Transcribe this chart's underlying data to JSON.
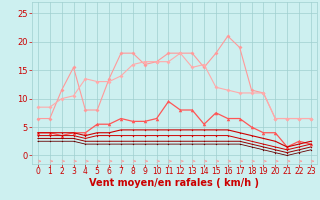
{
  "x": [
    0,
    1,
    2,
    3,
    4,
    5,
    6,
    7,
    8,
    9,
    10,
    11,
    12,
    13,
    14,
    15,
    16,
    17,
    18,
    19,
    20,
    21,
    22,
    23
  ],
  "background_color": "#cdf0f0",
  "grid_color": "#a0d0d0",
  "xlabel": "Vent moyen/en rafales ( km/h )",
  "xlabel_color": "#cc0000",
  "xlabel_fontsize": 7,
  "yticks": [
    0,
    5,
    10,
    15,
    20,
    25
  ],
  "ylim": [
    -1.5,
    27
  ],
  "xlim": [
    -0.5,
    23.5
  ],
  "line1_color": "#ff9999",
  "line1_y": [
    6.5,
    6.5,
    11.5,
    15.5,
    8.0,
    8.0,
    13.5,
    18.0,
    18.0,
    16.0,
    16.5,
    18.0,
    18.0,
    18.0,
    15.5,
    18.0,
    21.0,
    19.0,
    11.5,
    11.0,
    6.5,
    6.5,
    6.5,
    6.5
  ],
  "line2_color": "#ffaaaa",
  "line2_y": [
    8.5,
    8.5,
    10.0,
    10.5,
    13.5,
    13.0,
    13.0,
    14.0,
    16.0,
    16.5,
    16.5,
    16.5,
    18.0,
    15.5,
    16.0,
    12.0,
    11.5,
    11.0,
    11.0,
    11.0,
    6.5,
    6.5,
    6.5,
    6.5
  ],
  "line3_color": "#ff5555",
  "line3_y": [
    4.0,
    4.0,
    3.5,
    4.0,
    4.0,
    5.5,
    5.5,
    6.5,
    6.0,
    6.0,
    6.5,
    9.5,
    8.0,
    8.0,
    5.5,
    7.5,
    6.5,
    6.5,
    5.0,
    4.0,
    4.0,
    1.5,
    2.5,
    2.0
  ],
  "line4_color": "#cc0000",
  "line4_y": [
    4.0,
    4.0,
    4.0,
    4.0,
    3.5,
    4.0,
    4.0,
    4.5,
    4.5,
    4.5,
    4.5,
    4.5,
    4.5,
    4.5,
    4.5,
    4.5,
    4.5,
    4.0,
    3.5,
    3.0,
    2.5,
    1.5,
    2.0,
    2.5
  ],
  "line5_color": "#cc0000",
  "line5_y": [
    3.5,
    3.5,
    3.5,
    3.5,
    3.0,
    3.5,
    3.5,
    3.5,
    3.5,
    3.5,
    3.5,
    3.5,
    3.5,
    3.5,
    3.5,
    3.5,
    3.5,
    3.0,
    2.5,
    2.0,
    1.5,
    1.0,
    1.5,
    2.0
  ],
  "line6_color": "#990000",
  "line6_y": [
    3.0,
    3.0,
    3.0,
    3.0,
    2.5,
    2.5,
    2.5,
    2.5,
    2.5,
    2.5,
    2.5,
    2.5,
    2.5,
    2.5,
    2.5,
    2.5,
    2.5,
    2.5,
    2.0,
    1.5,
    1.0,
    0.5,
    1.0,
    1.5
  ],
  "line7_color": "#660000",
  "line7_y": [
    2.5,
    2.5,
    2.5,
    2.5,
    2.0,
    2.0,
    2.0,
    2.0,
    2.0,
    2.0,
    2.0,
    2.0,
    2.0,
    2.0,
    2.0,
    2.0,
    2.0,
    2.0,
    1.5,
    1.0,
    0.5,
    0.0,
    0.5,
    1.0
  ],
  "tick_color": "#cc0000",
  "tick_fontsize": 5.5,
  "ytick_fontsize": 6.0
}
